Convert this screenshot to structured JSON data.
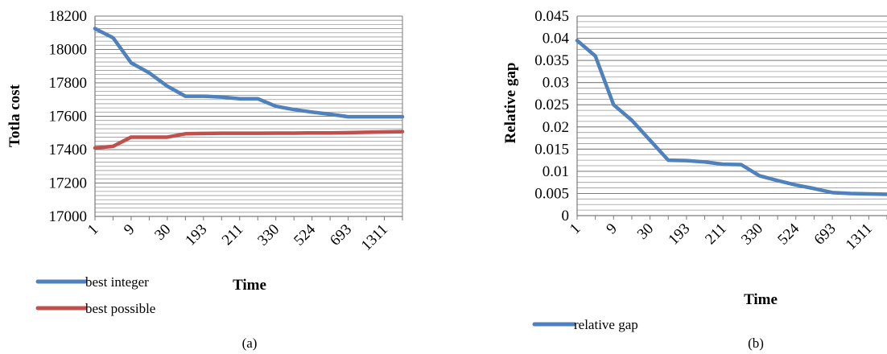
{
  "chart_data": [
    {
      "type": "line",
      "caption": "(a)",
      "title": "",
      "xlabel": "Time",
      "ylabel": "Totla cost",
      "ylim": [
        17000,
        18200
      ],
      "yticks": [
        "17000",
        "17200",
        "17400",
        "17600",
        "17800",
        "18000",
        "18200"
      ],
      "xticklabels": [
        "1",
        "9",
        "30",
        "193",
        "211",
        "330",
        "524",
        "693",
        "1311"
      ],
      "grid": true,
      "legend_position": "bottom-left",
      "series": [
        {
          "name": "best integer",
          "color": "#4f81bd",
          "values": [
            18125,
            18070,
            17920,
            17860,
            17780,
            17720,
            17720,
            17715,
            17705,
            17705,
            17660,
            17640,
            17625,
            17612,
            17597,
            17597,
            17597,
            17597
          ]
        },
        {
          "name": "best possible",
          "color": "#c0504d",
          "values": [
            17410,
            17420,
            17475,
            17475,
            17475,
            17495,
            17497,
            17498,
            17498,
            17498,
            17499,
            17499,
            17500,
            17500,
            17502,
            17504,
            17506,
            17508
          ]
        }
      ]
    },
    {
      "type": "line",
      "caption": "(b)",
      "title": "",
      "xlabel": "Time",
      "ylabel": "Relative gap",
      "ylim": [
        0,
        0.045
      ],
      "yticks": [
        "0",
        "0.005",
        "0.01",
        "0.015",
        "0.02",
        "0.025",
        "0.03",
        "0.035",
        "0.04",
        "0.045"
      ],
      "xticklabels": [
        "1",
        "9",
        "30",
        "193",
        "211",
        "330",
        "524",
        "693",
        "1311"
      ],
      "grid": true,
      "legend_position": "bottom-left",
      "series": [
        {
          "name": "relative gap",
          "color": "#4f81bd",
          "values": [
            0.0395,
            0.036,
            0.025,
            0.0215,
            0.017,
            0.0125,
            0.0124,
            0.0121,
            0.0116,
            0.0115,
            0.009,
            0.0079,
            0.0069,
            0.0061,
            0.0052,
            0.005,
            0.0049,
            0.0048
          ]
        }
      ]
    }
  ]
}
